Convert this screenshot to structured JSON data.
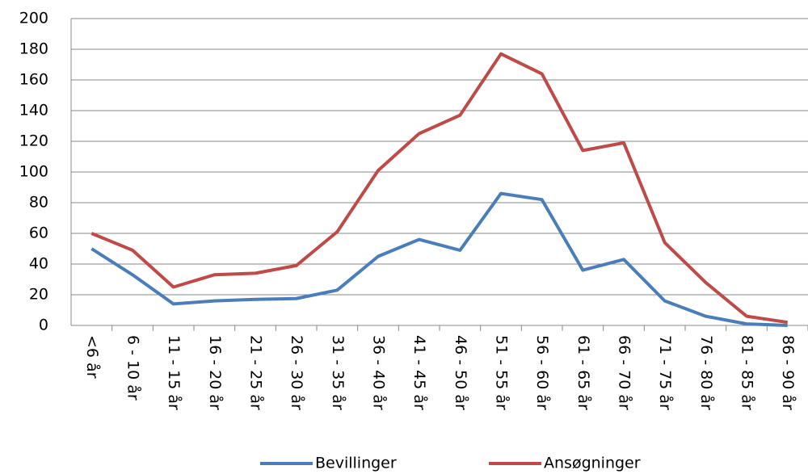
{
  "chart_data": {
    "type": "line",
    "categories": [
      "<6 år",
      "6 - 10 år",
      "11 - 15 år",
      "16 - 20 år",
      "21 - 25 år",
      "26 - 30 år",
      "31 - 35 år",
      "36 - 40 år",
      "41 - 45 år",
      "46 - 50 år",
      "51 - 55 år",
      "56 - 60 år",
      "61 - 65 år",
      "66 - 70 år",
      "71 - 75 år",
      "76 - 80 år",
      "81 - 85 år",
      "86 - 90 år"
    ],
    "series": [
      {
        "name": "Bevillinger",
        "color": "#4a7ebb",
        "values": [
          50,
          33,
          14,
          16,
          17,
          17.5,
          23,
          45,
          56,
          49,
          86,
          82,
          36,
          43,
          16,
          6,
          1,
          0
        ]
      },
      {
        "name": "Ansøgninger",
        "color": "#be4b48",
        "values": [
          60,
          49,
          25,
          33,
          34,
          39,
          61,
          101,
          125,
          137,
          177,
          164,
          114,
          119,
          54,
          28,
          6,
          2
        ]
      }
    ],
    "ylim": [
      0,
      200
    ],
    "yticks": [
      0,
      20,
      40,
      60,
      80,
      100,
      120,
      140,
      160,
      180,
      200
    ],
    "grid": true,
    "legend": "bottom"
  }
}
